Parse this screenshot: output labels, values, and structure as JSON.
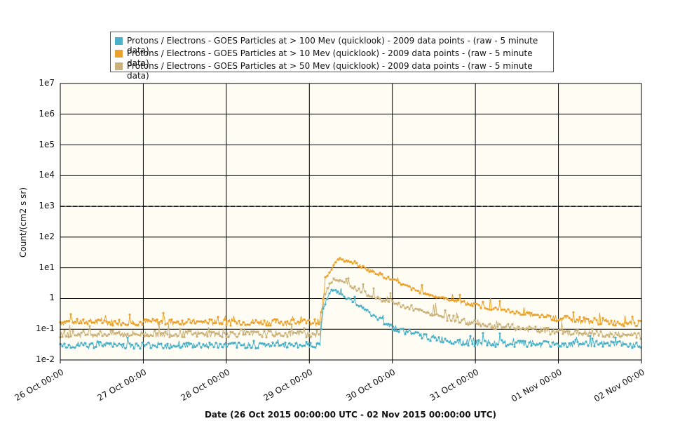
{
  "chart_data": {
    "type": "scatter",
    "xlabel": "Date (26 Oct 2015 00:00:00 UTC - 02 Nov 2015 00:00:00 UTC)",
    "ylabel": "Count/(cm2 s sr)",
    "yscale": "log",
    "ylim": [
      0.01,
      10000000
    ],
    "y_ticks": [
      "1e-2",
      "1e-1",
      "1",
      "1e1",
      "1e2",
      "1e3",
      "1e4",
      "1e5",
      "1e6",
      "1e7"
    ],
    "x_ticks": [
      "26 Oct 00:00",
      "27 Oct 00:00",
      "28 Oct 00:00",
      "29 Oct 00:00",
      "30 Oct 00:00",
      "31 Oct 00:00",
      "01 Nov 00:00",
      "02 Nov 00:00"
    ],
    "xlim": [
      "2015-10-26T00:00",
      "2015-11-02T00:00"
    ],
    "threshold_line": 1000,
    "grid": true,
    "legend_position": "top",
    "background": "#fffdf3",
    "series": [
      {
        "name": "Protons / Electrons - GOES Particles at > 100 Mev (quicklook) - 2009 data points -  (raw - 5 minute data)",
        "color": "#4ab1c8",
        "x": [
          "2015-10-26T00:00",
          "2015-10-27T00:00",
          "2015-10-28T00:00",
          "2015-10-29T00:00",
          "2015-10-29T03:00",
          "2015-10-29T04:00",
          "2015-10-29T06:00",
          "2015-10-29T08:00",
          "2015-10-29T12:00",
          "2015-10-29T18:00",
          "2015-10-30T00:00",
          "2015-10-30T06:00",
          "2015-10-30T12:00",
          "2015-10-31T00:00",
          "2015-11-01T00:00",
          "2015-11-02T00:00"
        ],
        "values": [
          0.03,
          0.03,
          0.03,
          0.03,
          0.03,
          0.5,
          1.8,
          1.6,
          0.9,
          0.3,
          0.12,
          0.07,
          0.05,
          0.035,
          0.032,
          0.032
        ]
      },
      {
        "name": "Protons / Electrons - GOES Particles at > 10 Mev (quicklook) - 2009 data points -  (raw - 5 minute data)",
        "color": "#eba22c",
        "x": [
          "2015-10-26T00:00",
          "2015-10-27T00:00",
          "2015-10-28T00:00",
          "2015-10-29T00:00",
          "2015-10-29T03:00",
          "2015-10-29T05:00",
          "2015-10-29T08:00",
          "2015-10-29T12:00",
          "2015-10-29T18:00",
          "2015-10-30T00:00",
          "2015-10-30T06:00",
          "2015-10-30T12:00",
          "2015-10-31T00:00",
          "2015-10-31T12:00",
          "2015-11-01T00:00",
          "2015-11-02T00:00"
        ],
        "values": [
          0.17,
          0.17,
          0.17,
          0.17,
          0.17,
          5,
          20,
          15,
          8,
          4,
          2,
          1.2,
          0.6,
          0.35,
          0.22,
          0.15
        ]
      },
      {
        "name": "Protons / Electrons - GOES Particles at > 50 Mev (quicklook) - 2009 data points -  (raw - 5 minute data)",
        "color": "#cbb27a",
        "x": [
          "2015-10-26T00:00",
          "2015-10-27T00:00",
          "2015-10-28T00:00",
          "2015-10-29T00:00",
          "2015-10-29T03:00",
          "2015-10-29T04:30",
          "2015-10-29T07:00",
          "2015-10-29T12:00",
          "2015-10-29T18:00",
          "2015-10-30T00:00",
          "2015-10-30T06:00",
          "2015-10-30T12:00",
          "2015-10-31T00:00",
          "2015-11-01T00:00",
          "2015-11-02T00:00"
        ],
        "values": [
          0.07,
          0.07,
          0.07,
          0.07,
          0.07,
          1.5,
          4.5,
          2.5,
          1.2,
          0.7,
          0.45,
          0.3,
          0.15,
          0.08,
          0.06
        ]
      }
    ]
  }
}
